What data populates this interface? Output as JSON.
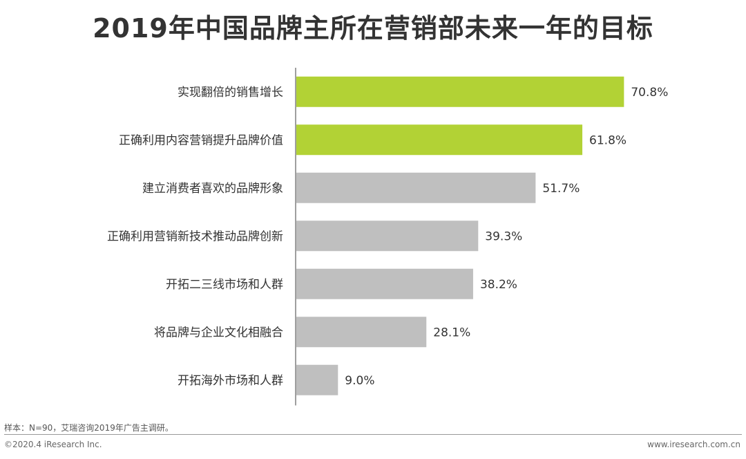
{
  "title": "2019年中国品牌主所在营销部未来一年的目标",
  "chart_data": {
    "type": "bar",
    "orientation": "horizontal",
    "title": "2019年中国品牌主所在营销部未来一年的目标",
    "categories": [
      "实现翻倍的销售增长",
      "正确利用内容营销提升品牌价值",
      "建立消费者喜欢的品牌形象",
      "正确利用营销新技术推动品牌创新",
      "开拓二三线市场和人群",
      "将品牌与企业文化相融合",
      "开拓海外市场和人群"
    ],
    "values": [
      70.8,
      61.8,
      51.7,
      39.3,
      38.2,
      28.1,
      9.0
    ],
    "value_labels": [
      "70.8%",
      "61.8%",
      "51.7%",
      "39.3%",
      "38.2%",
      "28.1%",
      "9.0%"
    ],
    "highlight_count": 2,
    "colors": {
      "highlight": "#b2d235",
      "normal": "#bfbfbf",
      "axis": "#7f7f7f"
    },
    "xlim": [
      0,
      100
    ],
    "grid": false,
    "legend": "none"
  },
  "footer": {
    "note": "样本：N=90，艾瑞咨询2019年广告主调研。",
    "copyright": "©2020.4 iResearch Inc.",
    "site": "www.iresearch.com.cn"
  }
}
